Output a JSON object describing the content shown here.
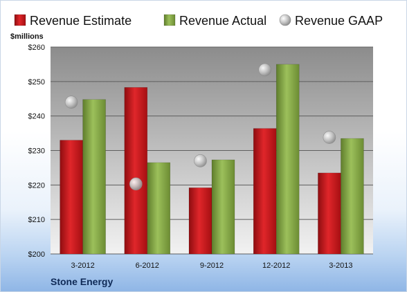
{
  "chart_data": {
    "type": "bar",
    "ylabel": "$millions",
    "ylim": [
      200,
      260
    ],
    "yticks": [
      200,
      210,
      220,
      230,
      240,
      250,
      260
    ],
    "tick_prefix": "$",
    "grid": true,
    "legend_position": "top",
    "categories": [
      "3-2012",
      "6-2012",
      "9-2012",
      "12-2012",
      "3-2013"
    ],
    "series": [
      {
        "name": "Revenue Estimate",
        "kind": "bar",
        "color": "#c8141a",
        "values": [
          233.0,
          248.3,
          219.2,
          236.4,
          223.5
        ]
      },
      {
        "name": "Revenue Actual",
        "kind": "bar",
        "color": "#8bb04a",
        "values": [
          244.8,
          226.5,
          227.3,
          255.0,
          233.5
        ]
      },
      {
        "name": "Revenue GAAP",
        "kind": "marker",
        "color": "#b8b8b8",
        "values": [
          244.0,
          220.3,
          227.0,
          253.4,
          233.8
        ]
      }
    ],
    "footer_label": "Stone Energy"
  }
}
